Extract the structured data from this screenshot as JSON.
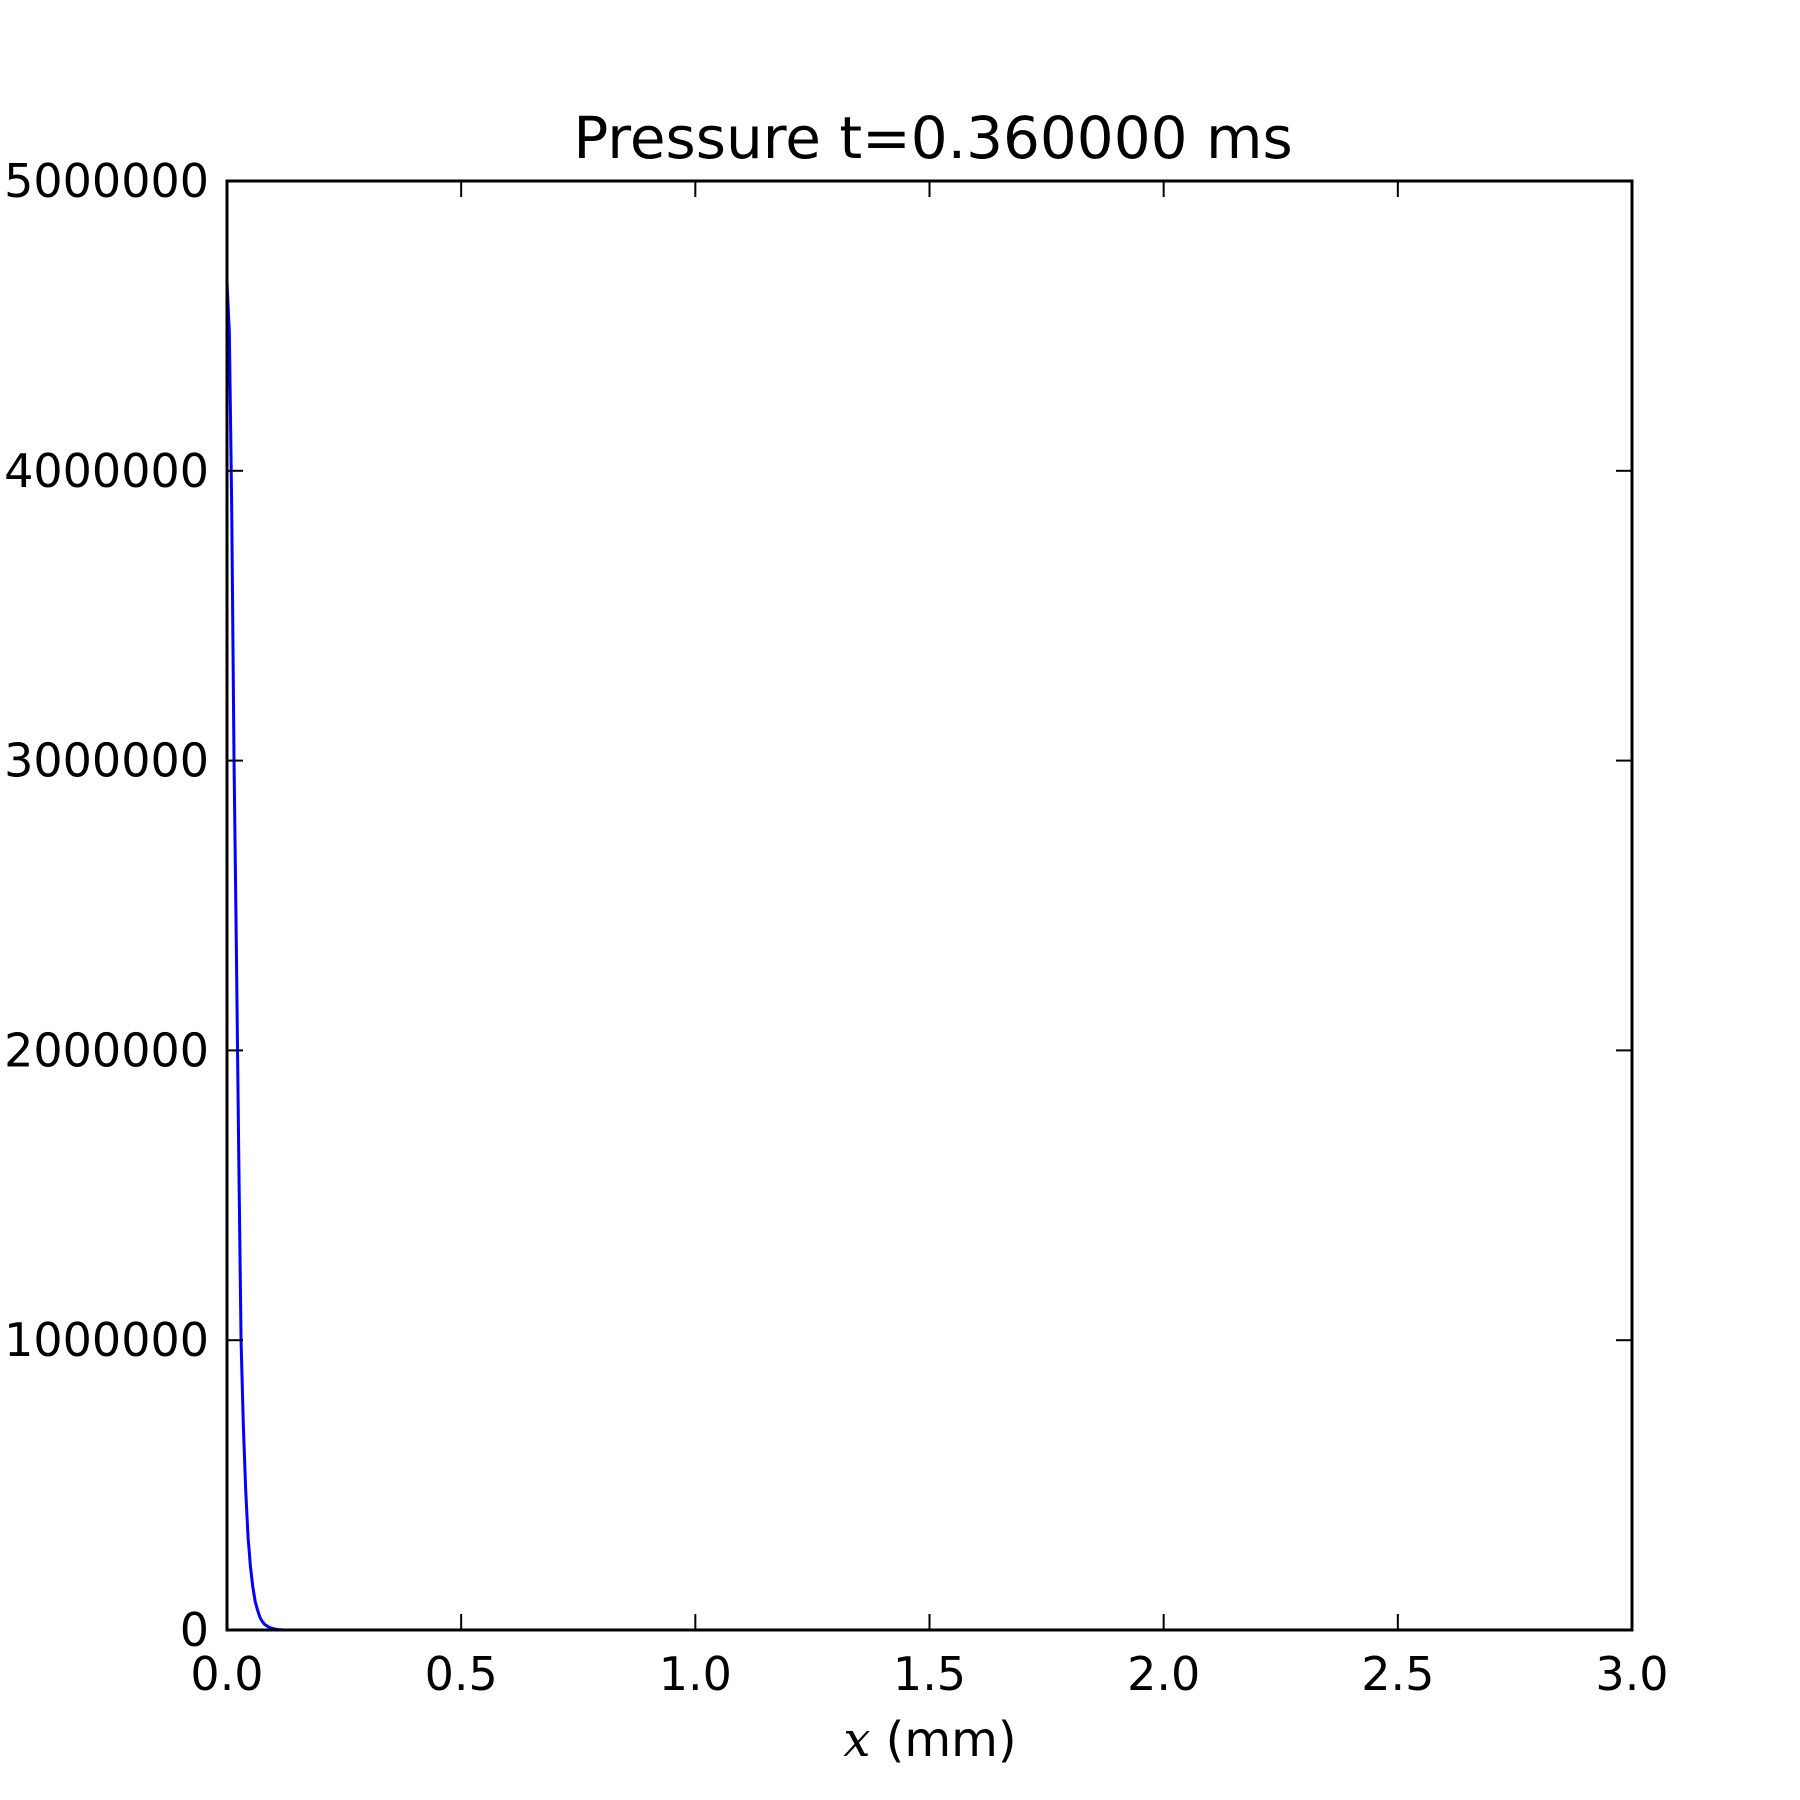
{
  "chart_data": {
    "type": "line",
    "title": "Pressure t=0.360000 ms",
    "xlabel_var": "x",
    "xlabel_unit": " (mm)",
    "ylabel": "",
    "xlim": [
      0.0,
      3.0
    ],
    "ylim": [
      0,
      5000000
    ],
    "xticks": [
      "0.0",
      "0.5",
      "1.0",
      "1.5",
      "2.0",
      "2.5",
      "3.0"
    ],
    "yticks": [
      "0",
      "1000000",
      "2000000",
      "3000000",
      "4000000",
      "5000000"
    ],
    "grid": false,
    "series": [
      {
        "color": "#0000ff",
        "x": [
          0.0,
          0.005,
          0.01,
          0.015,
          0.02,
          0.025,
          0.03,
          0.035,
          0.04,
          0.045,
          0.05,
          0.055,
          0.06,
          0.065,
          0.07,
          0.075,
          0.08,
          0.09,
          0.1,
          0.11,
          0.12,
          0.14,
          0.16,
          0.2,
          0.3,
          0.5,
          1.0,
          1.5,
          2.0,
          2.5,
          3.0
        ],
        "y": [
          4650000,
          4480000,
          3880000,
          3000000,
          2350000,
          1650000,
          1000000,
          700000,
          480000,
          320000,
          220000,
          150000,
          100000,
          70000,
          45000,
          30000,
          20000,
          9000,
          4000,
          1500,
          600,
          150,
          40,
          5,
          0,
          0,
          0,
          0,
          0,
          0,
          0
        ]
      }
    ]
  }
}
